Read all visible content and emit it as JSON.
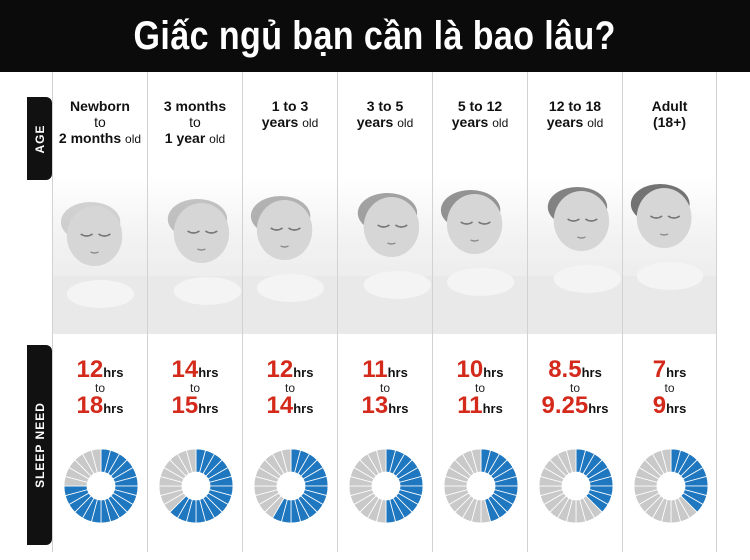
{
  "title": "Giấc ngủ bạn cần là bao lâu?",
  "labels": {
    "age": "AGE",
    "sleep_need": "SLEEP NEED"
  },
  "colors": {
    "accent_red": "#d42a1c",
    "fill_blue": "#1f77c0",
    "empty_gray": "#c9c9c9"
  },
  "columns": [
    {
      "age_line1": "Newborn",
      "age_line2": "to",
      "age_line3_bold": "2 months",
      "age_line3_small": "old",
      "min_value": "12",
      "max_value": "18",
      "unit": "hrs",
      "to": "to",
      "fill_fraction": 0.75
    },
    {
      "age_line1": "3 months",
      "age_line2": "to",
      "age_line3_bold": "1 year",
      "age_line3_small": "old",
      "min_value": "14",
      "max_value": "15",
      "unit": "hrs",
      "to": "to",
      "fill_fraction": 0.625
    },
    {
      "age_line1": "1 to 3",
      "age_line2": "",
      "age_line3_bold": "years",
      "age_line3_small": "old",
      "min_value": "12",
      "max_value": "14",
      "unit": "hrs",
      "to": "to",
      "fill_fraction": 0.583
    },
    {
      "age_line1": "3 to 5",
      "age_line2": "",
      "age_line3_bold": "years",
      "age_line3_small": "old",
      "min_value": "11",
      "max_value": "13",
      "unit": "hrs",
      "to": "to",
      "fill_fraction": 0.5
    },
    {
      "age_line1": "5 to 12",
      "age_line2": "",
      "age_line3_bold": "years",
      "age_line3_small": "old",
      "min_value": "10",
      "max_value": "11",
      "unit": "hrs",
      "to": "to",
      "fill_fraction": 0.458
    },
    {
      "age_line1": "12 to 18",
      "age_line2": "",
      "age_line3_bold": "years",
      "age_line3_small": "old",
      "min_value": "8.5",
      "max_value": "9.25",
      "unit": "hrs",
      "to": "to",
      "fill_fraction": 0.375
    },
    {
      "age_line1": "Adult",
      "age_line2": "(18+)",
      "age_line3_bold": "",
      "age_line3_small": "",
      "min_value": "7",
      "max_value": "9",
      "unit": "hrs",
      "to": "to",
      "fill_fraction": 0.375
    }
  ]
}
